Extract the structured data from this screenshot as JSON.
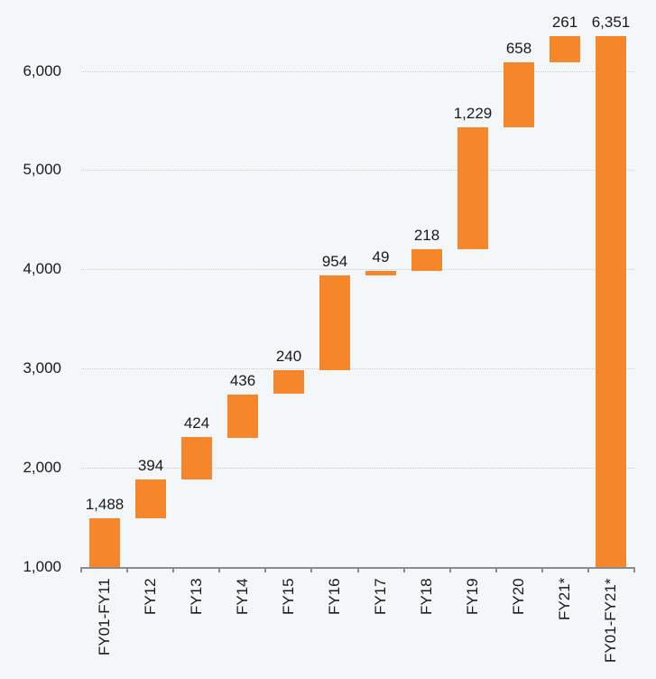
{
  "chart_data": {
    "type": "bar",
    "subtype": "waterfall",
    "title": "",
    "xlabel": "",
    "ylabel": "",
    "ylim": [
      1000,
      6500
    ],
    "yticks": [
      1000,
      2000,
      3000,
      4000,
      5000,
      6000
    ],
    "ytick_labels": [
      "1,000",
      "2,000",
      "3,000",
      "4,000",
      "5,000",
      "6,000"
    ],
    "grid": true,
    "legend": null,
    "bar_color": "#f5862a",
    "categories": [
      "FY01-FY11",
      "FY12",
      "FY13",
      "FY14",
      "FY15",
      "FY16",
      "FY17",
      "FY18",
      "FY19",
      "FY20",
      "FY21*",
      "FY01-FY21*"
    ],
    "values": [
      1488,
      394,
      424,
      436,
      240,
      954,
      49,
      218,
      1229,
      658,
      261,
      6351
    ],
    "value_labels": [
      "1,488",
      "394",
      "424",
      "436",
      "240",
      "954",
      "49",
      "218",
      "1,229",
      "658",
      "261",
      "6,351"
    ],
    "bar_bottoms": [
      1000,
      1488,
      1882,
      2306,
      2742,
      2982,
      3936,
      3985,
      4203,
      5432,
      6090,
      1000
    ],
    "bar_tops": [
      1488,
      1882,
      2306,
      2742,
      2982,
      3936,
      3985,
      4203,
      5432,
      6090,
      6351,
      6351
    ]
  }
}
